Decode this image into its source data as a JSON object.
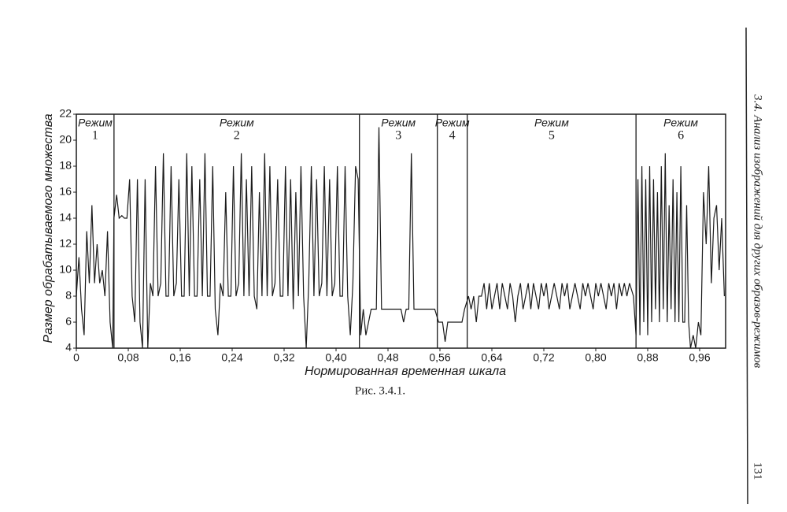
{
  "chart_data": {
    "type": "line",
    "x_label": "Нормированная временная шкала",
    "y_label": "Размер обрабатываемого множества",
    "xlim": [
      0,
      1
    ],
    "xticks": [
      0,
      {
        "value": 0.08,
        "label": "0,08"
      },
      {
        "value": 0.16,
        "label": "0,16"
      },
      {
        "value": 0.24,
        "label": "0,24"
      },
      {
        "value": 0.32,
        "label": "0,32"
      },
      {
        "value": 0.4,
        "label": "0,40"
      },
      {
        "value": 0.48,
        "label": "0,48"
      },
      {
        "value": 0.56,
        "label": "0,56"
      },
      {
        "value": 0.64,
        "label": "0,64"
      },
      {
        "value": 0.72,
        "label": "0,72"
      },
      {
        "value": 0.8,
        "label": "0,80"
      },
      {
        "value": 0.88,
        "label": "0,88"
      },
      {
        "value": 0.96,
        "label": "0,96"
      }
    ],
    "ylim": [
      4,
      22
    ],
    "yticks": [
      4,
      6,
      8,
      10,
      12,
      14,
      16,
      18,
      20,
      22
    ],
    "boundaries": [
      0.058,
      0.436,
      0.556,
      0.602,
      0.862
    ],
    "regimes": [
      {
        "label": "Режим",
        "number": "1"
      },
      {
        "label": "Режим",
        "number": "2"
      },
      {
        "label": "Режим",
        "number": "3"
      },
      {
        "label": "Режим",
        "number": "4"
      },
      {
        "label": "Режим",
        "number": "5"
      },
      {
        "label": "Режим",
        "number": "6"
      }
    ],
    "x": [
      0,
      0.004,
      0.008,
      0.012,
      0.016,
      0.02,
      0.024,
      0.028,
      0.032,
      0.036,
      0.04,
      0.044,
      0.048,
      0.052,
      0.056,
      0.058,
      0.062,
      0.066,
      0.07,
      0.074,
      0.078,
      0.082,
      0.086,
      0.09,
      0.094,
      0.098,
      0.102,
      0.106,
      0.11,
      0.114,
      0.118,
      0.122,
      0.126,
      0.13,
      0.134,
      0.138,
      0.142,
      0.146,
      0.15,
      0.154,
      0.158,
      0.162,
      0.166,
      0.17,
      0.174,
      0.178,
      0.182,
      0.186,
      0.19,
      0.194,
      0.198,
      0.202,
      0.206,
      0.21,
      0.214,
      0.218,
      0.222,
      0.226,
      0.23,
      0.234,
      0.238,
      0.242,
      0.246,
      0.25,
      0.254,
      0.258,
      0.262,
      0.266,
      0.27,
      0.274,
      0.278,
      0.282,
      0.286,
      0.29,
      0.294,
      0.298,
      0.302,
      0.306,
      0.31,
      0.314,
      0.318,
      0.322,
      0.326,
      0.33,
      0.334,
      0.338,
      0.342,
      0.346,
      0.35,
      0.354,
      0.358,
      0.362,
      0.366,
      0.37,
      0.374,
      0.378,
      0.382,
      0.386,
      0.39,
      0.394,
      0.398,
      0.402,
      0.406,
      0.41,
      0.414,
      0.418,
      0.422,
      0.426,
      0.43,
      0.434,
      0.438,
      0.442,
      0.446,
      0.45,
      0.454,
      0.458,
      0.462,
      0.466,
      0.47,
      0.476,
      0.484,
      0.492,
      0.5,
      0.504,
      0.508,
      0.512,
      0.516,
      0.52,
      0.528,
      0.536,
      0.544,
      0.552,
      0.558,
      0.564,
      0.568,
      0.572,
      0.58,
      0.588,
      0.594,
      0.598,
      0.604,
      0.608,
      0.612,
      0.616,
      0.62,
      0.624,
      0.628,
      0.632,
      0.636,
      0.64,
      0.644,
      0.648,
      0.652,
      0.656,
      0.66,
      0.664,
      0.668,
      0.672,
      0.676,
      0.68,
      0.684,
      0.688,
      0.692,
      0.696,
      0.7,
      0.704,
      0.708,
      0.712,
      0.716,
      0.72,
      0.724,
      0.728,
      0.732,
      0.736,
      0.74,
      0.744,
      0.748,
      0.752,
      0.756,
      0.76,
      0.764,
      0.768,
      0.772,
      0.776,
      0.78,
      0.784,
      0.788,
      0.792,
      0.796,
      0.8,
      0.804,
      0.808,
      0.812,
      0.816,
      0.82,
      0.824,
      0.828,
      0.832,
      0.836,
      0.84,
      0.844,
      0.848,
      0.852,
      0.858,
      0.862,
      0.865,
      0.868,
      0.871,
      0.874,
      0.877,
      0.88,
      0.883,
      0.886,
      0.889,
      0.892,
      0.895,
      0.898,
      0.901,
      0.904,
      0.907,
      0.91,
      0.913,
      0.916,
      0.919,
      0.922,
      0.925,
      0.928,
      0.931,
      0.934,
      0.937,
      0.94,
      0.943,
      0.946,
      0.95,
      0.954,
      0.958,
      0.962,
      0.966,
      0.97,
      0.974,
      0.978,
      0.982,
      0.986,
      0.99,
      0.994,
      0.998
    ],
    "series": [
      {
        "color": "#1a1a1a",
        "values": [
          8,
          11,
          7,
          5,
          13,
          9,
          15,
          9,
          12,
          9,
          10,
          8,
          13,
          6,
          4,
          14,
          15.8,
          14,
          14.2,
          14,
          14,
          17,
          8,
          6,
          17,
          6,
          4,
          17,
          4,
          9,
          8,
          18,
          8,
          9,
          19,
          8,
          8,
          18,
          8,
          9,
          17,
          8,
          8,
          19,
          8,
          18,
          8,
          8,
          17,
          8,
          19,
          8,
          8,
          18,
          7,
          5,
          9,
          8,
          16,
          8,
          8,
          18,
          8,
          9,
          19,
          8,
          17,
          8,
          18,
          8,
          7,
          16,
          8,
          19,
          8,
          18,
          8,
          9,
          17,
          8,
          8,
          18,
          8,
          17,
          7,
          16,
          8,
          18,
          8,
          4,
          9,
          18,
          8,
          17,
          8,
          9,
          18,
          8,
          17,
          8,
          9,
          18,
          8,
          8,
          18,
          8,
          5,
          9,
          18,
          17,
          5,
          7,
          5,
          6,
          7,
          7,
          7,
          21,
          7,
          7,
          7,
          7,
          7,
          6,
          7,
          7,
          19,
          7,
          7,
          7,
          7,
          7,
          6,
          6,
          4.5,
          6,
          6,
          6,
          6,
          7,
          8,
          7,
          8,
          6,
          8,
          8,
          9,
          7,
          9,
          7,
          8,
          9,
          7,
          9,
          8,
          7,
          9,
          8,
          6,
          8,
          9,
          7,
          8,
          9,
          7,
          9,
          8,
          7,
          9,
          8,
          9,
          7,
          8,
          9,
          8,
          7,
          9,
          8,
          9,
          7,
          8,
          9,
          8,
          7,
          9,
          8,
          9,
          8,
          7,
          9,
          8,
          9,
          8,
          7,
          9,
          8,
          9,
          7,
          9,
          8,
          9,
          8,
          9,
          8,
          5,
          17,
          5,
          18,
          6,
          17,
          5,
          18,
          6,
          17,
          7,
          16,
          6,
          18,
          7,
          19,
          6,
          15,
          7,
          17,
          6,
          16,
          6,
          18,
          6,
          6,
          15,
          6,
          4,
          5,
          4,
          6,
          5,
          16,
          12,
          18,
          9,
          14,
          15,
          10,
          14,
          8
        ]
      }
    ]
  },
  "caption": "Рис. 3.4.1.",
  "running_head": "3.4. Анализ изображений для других образов-режимов",
  "page_number": "131"
}
